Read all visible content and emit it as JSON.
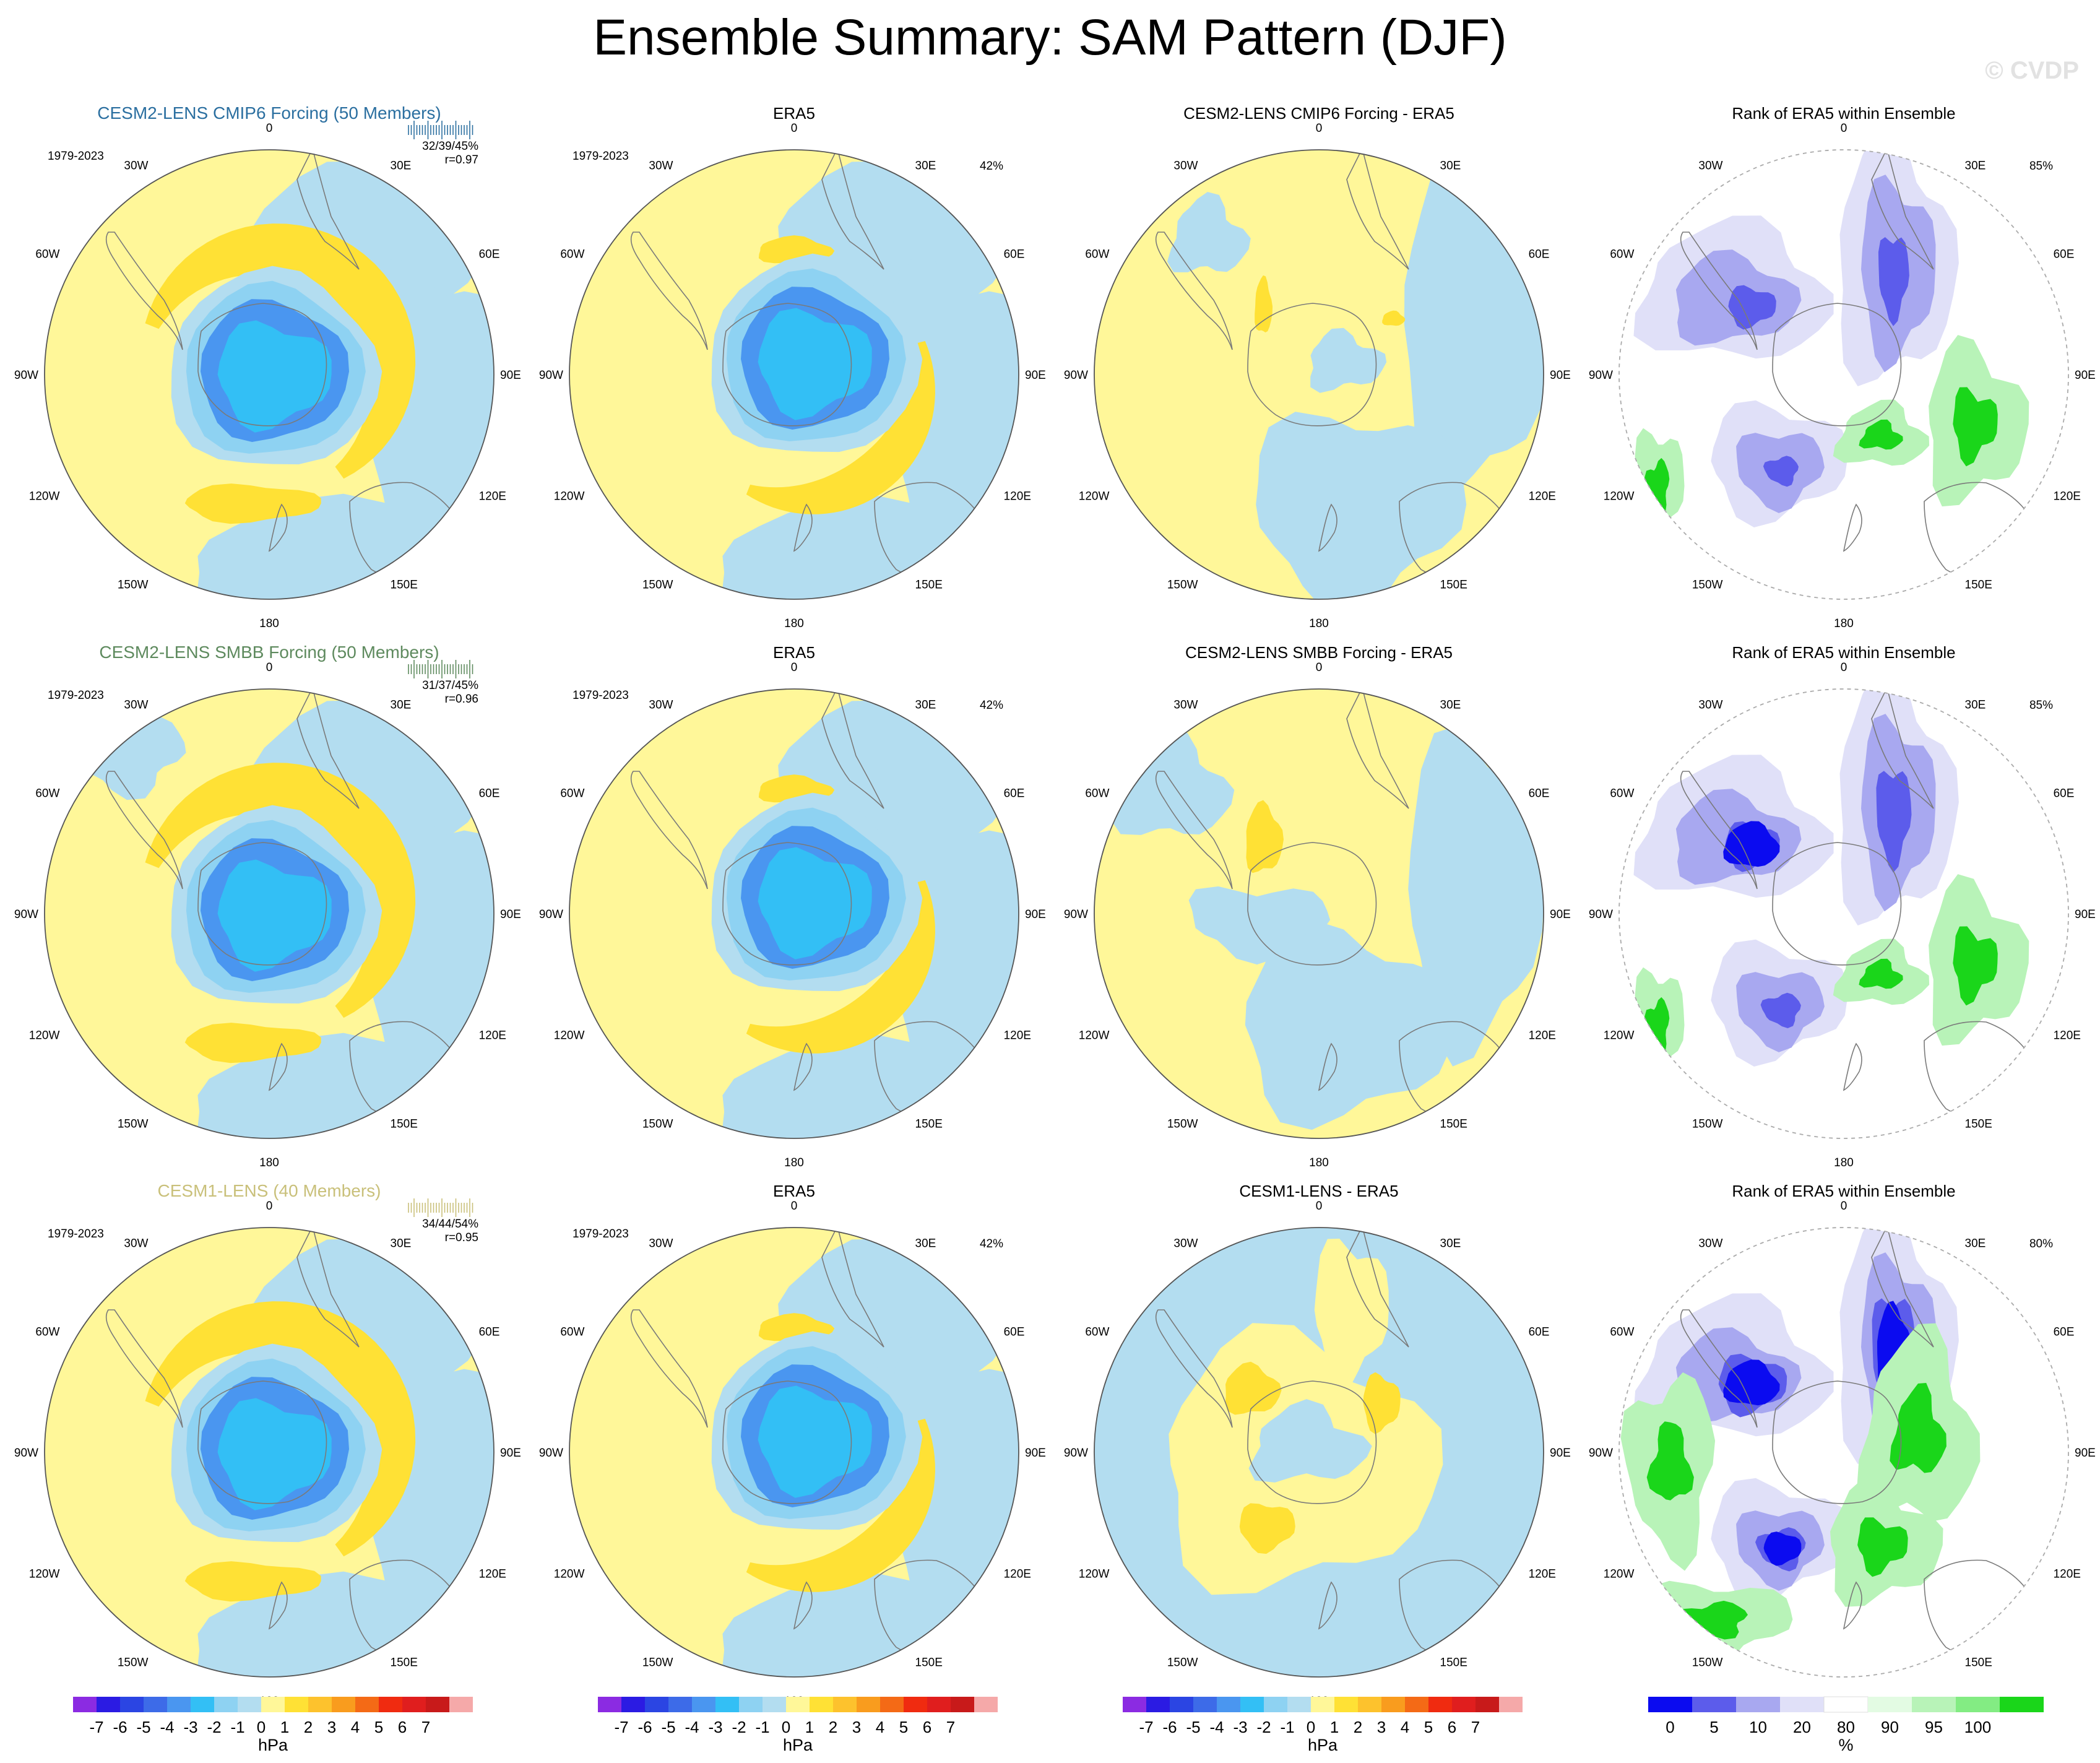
{
  "title": "Ensemble Summary: SAM Pattern (DJF)",
  "watermark": "© CVDP",
  "lon_labels": [
    "0",
    "30E",
    "60E",
    "90E",
    "120E",
    "150E",
    "180",
    "150W",
    "120W",
    "90W",
    "60W",
    "30W"
  ],
  "colors": {
    "hpa_scale": [
      "#8B2BE2",
      "#2B1BE3",
      "#2B45E3",
      "#3D6BE8",
      "#4A96F0",
      "#33BFF5",
      "#8ED2F2",
      "#B3DDF0",
      "#FFF799",
      "#FFE135",
      "#FDC22D",
      "#F99C1E",
      "#F46A16",
      "#F02B10",
      "#E01E1E",
      "#C81A1A",
      "#F5A9A9"
    ],
    "rank_scale": [
      "#0B0BF0",
      "#5C5CEB",
      "#A8A8F0",
      "#E0E0F8",
      "#FFFFFF",
      "#E3FBE3",
      "#B8F3B8",
      "#83EC83",
      "#1AD61A"
    ],
    "coast": "#7a7a7a",
    "sig_lines": "#4a7a9a"
  },
  "hpa_colorbar": {
    "ticks": [
      "-7",
      "-6",
      "-5",
      "-4",
      "-3",
      "-2",
      "-1",
      "0",
      "1",
      "2",
      "3",
      "4",
      "5",
      "6",
      "7"
    ],
    "unit": "hPa"
  },
  "rank_colorbar": {
    "ticks": [
      "0",
      "5",
      "10",
      "20",
      "80",
      "90",
      "95",
      "100"
    ],
    "unit": "%"
  },
  "chart_data": [
    {
      "type": "heatmap",
      "row": 1,
      "panels": [
        {
          "title": "CESM2-LENS CMIP6 Forcing (50 Members)",
          "title_color": "#2B6FA0",
          "period": "1979-2023",
          "pct": "32/39/45%",
          "r": "r=0.97",
          "projection": "south-polar-stereographic"
        },
        {
          "title": "ERA5",
          "period": "1979-2023",
          "pct": "42%"
        },
        {
          "title": "CESM2-LENS CMIP6 Forcing - ERA5"
        },
        {
          "title": "Rank of ERA5 within Ensemble",
          "pct": "85%"
        }
      ]
    },
    {
      "type": "heatmap",
      "row": 2,
      "panels": [
        {
          "title": "CESM2-LENS SMBB Forcing (50 Members)",
          "title_color": "#5E8A5E",
          "period": "1979-2023",
          "pct": "31/37/45%",
          "r": "r=0.96"
        },
        {
          "title": "ERA5",
          "period": "1979-2023",
          "pct": "42%"
        },
        {
          "title": "CESM2-LENS SMBB Forcing - ERA5"
        },
        {
          "title": "Rank of ERA5 within Ensemble",
          "pct": "85%"
        }
      ]
    },
    {
      "type": "heatmap",
      "row": 3,
      "panels": [
        {
          "title": "CESM1-LENS (40 Members)",
          "title_color": "#C9C07A",
          "period": "1979-2023",
          "pct": "34/44/54%",
          "r": "r=0.95"
        },
        {
          "title": "ERA5",
          "period": "1979-2023",
          "pct": "42%"
        },
        {
          "title": "CESM1-LENS - ERA5"
        },
        {
          "title": "Rank of ERA5 within Ensemble",
          "pct": "80%"
        }
      ]
    }
  ]
}
